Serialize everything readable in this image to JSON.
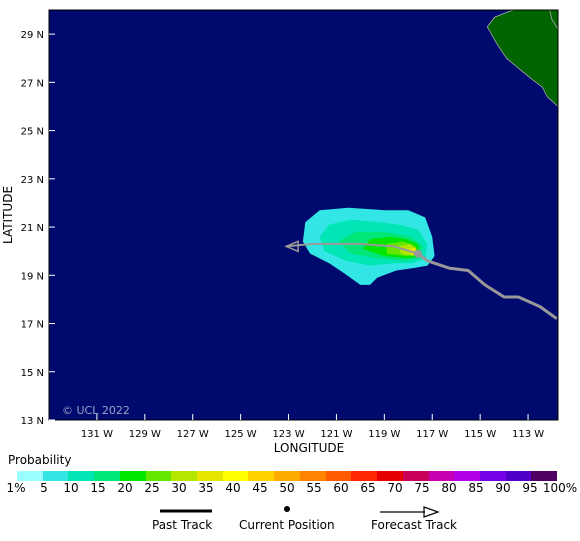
{
  "map": {
    "copyright": "© UCL 2022",
    "xlabel": "LONGITUDE",
    "ylabel": "LATITUDE",
    "lon_range": [
      -133,
      -111.75
    ],
    "lat_range": [
      13,
      30
    ],
    "lon_ticks": [
      {
        "value": -131,
        "label": "131 W"
      },
      {
        "value": -129,
        "label": "129 W"
      },
      {
        "value": -127,
        "label": "127 W"
      },
      {
        "value": -125,
        "label": "125 W"
      },
      {
        "value": -123,
        "label": "123 W"
      },
      {
        "value": -121,
        "label": "121 W"
      },
      {
        "value": -119,
        "label": "119 W"
      },
      {
        "value": -117,
        "label": "117 W"
      },
      {
        "value": -115,
        "label": "115 W"
      },
      {
        "value": -113,
        "label": "113 W"
      }
    ],
    "lat_ticks": [
      {
        "value": 29,
        "label": "29 N"
      },
      {
        "value": 27,
        "label": "27 N"
      },
      {
        "value": 25,
        "label": "25 N"
      },
      {
        "value": 23,
        "label": "23 N"
      },
      {
        "value": 21,
        "label": "21 N"
      },
      {
        "value": 19,
        "label": "19 N"
      },
      {
        "value": 17,
        "label": "17 N"
      },
      {
        "value": 15,
        "label": "15 N"
      },
      {
        "value": 13,
        "label": "13 N"
      }
    ],
    "colors": {
      "ocean": "#000a6e",
      "land": "#006400",
      "track": "#999999",
      "coast": "#aaaaaa"
    },
    "past_track": [
      [
        -111.8,
        17.2
      ],
      [
        -112.5,
        17.7
      ],
      [
        -113.4,
        18.1
      ],
      [
        -114.0,
        18.1
      ],
      [
        -114.8,
        18.6
      ],
      [
        -115.5,
        19.2
      ],
      [
        -116.3,
        19.3
      ],
      [
        -117.2,
        19.6
      ],
      [
        -117.6,
        19.9
      ]
    ],
    "current_position": [
      -117.6,
      19.9
    ],
    "forecast_track": [
      [
        -117.6,
        19.9
      ],
      [
        -118.6,
        20.2
      ],
      [
        -120.0,
        20.3
      ],
      [
        -122.0,
        20.3
      ],
      [
        -123.1,
        20.2
      ]
    ],
    "probability_regions": [
      {
        "prob": 5,
        "points": [
          [
            -119.0,
            21.7
          ],
          [
            -120.5,
            21.8
          ],
          [
            -121.7,
            21.7
          ],
          [
            -122.3,
            21.2
          ],
          [
            -122.4,
            20.4
          ],
          [
            -122.1,
            19.9
          ],
          [
            -121.3,
            19.5
          ],
          [
            -120.7,
            19.1
          ],
          [
            -120.0,
            18.6
          ],
          [
            -119.6,
            18.6
          ],
          [
            -119.3,
            18.9
          ],
          [
            -118.5,
            19.2
          ],
          [
            -117.8,
            19.3
          ],
          [
            -117.2,
            19.4
          ],
          [
            -116.9,
            19.8
          ],
          [
            -117.0,
            20.6
          ],
          [
            -117.3,
            21.4
          ],
          [
            -118.0,
            21.7
          ]
        ]
      },
      {
        "prob": 10,
        "points": [
          [
            -119.2,
            21.2
          ],
          [
            -120.4,
            21.3
          ],
          [
            -121.3,
            21.1
          ],
          [
            -121.7,
            20.6
          ],
          [
            -121.5,
            20.0
          ],
          [
            -120.6,
            19.6
          ],
          [
            -119.6,
            19.4
          ],
          [
            -118.6,
            19.5
          ],
          [
            -117.8,
            19.5
          ],
          [
            -117.3,
            19.7
          ],
          [
            -117.2,
            20.3
          ],
          [
            -117.6,
            20.9
          ],
          [
            -118.4,
            21.1
          ]
        ]
      },
      {
        "prob": 15,
        "points": [
          [
            -119.0,
            20.8
          ],
          [
            -120.2,
            20.8
          ],
          [
            -120.9,
            20.4
          ],
          [
            -120.4,
            19.9
          ],
          [
            -119.3,
            19.7
          ],
          [
            -118.2,
            19.6
          ],
          [
            -117.5,
            19.7
          ],
          [
            -117.4,
            20.2
          ],
          [
            -117.9,
            20.6
          ]
        ]
      },
      {
        "prob": 20,
        "points": [
          [
            -118.7,
            20.6
          ],
          [
            -119.6,
            20.5
          ],
          [
            -119.9,
            20.1
          ],
          [
            -119.0,
            19.8
          ],
          [
            -118.0,
            19.7
          ],
          [
            -117.5,
            19.8
          ],
          [
            -117.6,
            20.3
          ],
          [
            -118.1,
            20.5
          ]
        ]
      },
      {
        "prob": 25,
        "points": [
          [
            -118.2,
            20.4
          ],
          [
            -118.9,
            20.3
          ],
          [
            -118.9,
            19.9
          ],
          [
            -118.1,
            19.8
          ],
          [
            -117.6,
            19.9
          ],
          [
            -117.7,
            20.2
          ]
        ]
      },
      {
        "prob": 30,
        "points": [
          [
            -117.9,
            20.3
          ],
          [
            -118.4,
            20.2
          ],
          [
            -118.3,
            19.9
          ],
          [
            -117.8,
            19.8
          ],
          [
            -117.6,
            20.0
          ]
        ]
      },
      {
        "prob": 35,
        "points": [
          [
            -117.7,
            20.15
          ],
          [
            -118.0,
            20.1
          ],
          [
            -117.9,
            19.9
          ],
          [
            -117.65,
            19.9
          ]
        ]
      }
    ],
    "land": [
      [
        [
          -113.6,
          30.0
        ],
        [
          -111.75,
          30.0
        ],
        [
          -111.75,
          26.0
        ],
        [
          -112.2,
          26.4
        ],
        [
          -112.4,
          26.8
        ],
        [
          -112.8,
          27.1
        ],
        [
          -113.3,
          27.5
        ],
        [
          -113.9,
          28.0
        ],
        [
          -114.3,
          28.6
        ],
        [
          -114.7,
          29.3
        ],
        [
          -114.4,
          29.7
        ],
        [
          -113.9,
          29.9
        ]
      ],
      [
        [
          -112.1,
          30.0
        ],
        [
          -111.75,
          30.0
        ],
        [
          -111.75,
          29.2
        ],
        [
          -112.0,
          29.6
        ]
      ]
    ]
  },
  "legend": {
    "title": "Probability",
    "labels": [
      "1%",
      "5",
      "10",
      "15",
      "20",
      "25",
      "30",
      "35",
      "40",
      "45",
      "50",
      "55",
      "60",
      "65",
      "70",
      "75",
      "80",
      "85",
      "90",
      "95",
      "100%"
    ],
    "colors": [
      "#99ffff",
      "#33e6e6",
      "#00e6b4",
      "#00e678",
      "#00e600",
      "#64e600",
      "#b4e600",
      "#e6e600",
      "#ffff00",
      "#ffd200",
      "#ffaa00",
      "#ff8200",
      "#ff5a00",
      "#ff2800",
      "#e60000",
      "#c8005a",
      "#c800b4",
      "#b400e6",
      "#7800e6",
      "#5000c8",
      "#500064"
    ],
    "past_track": "Past Track",
    "current_position": "Current Position",
    "forecast_track": "Forecast Track"
  }
}
